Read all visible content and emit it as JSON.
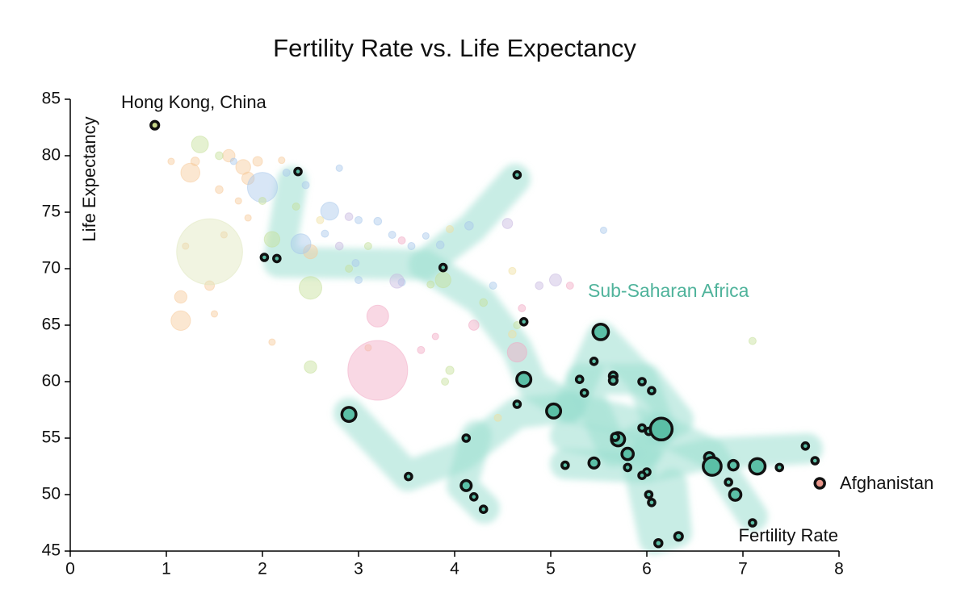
{
  "chart_data": {
    "type": "scatter",
    "title": "Fertility Rate vs. Life Expectancy",
    "x_label": "Fertility Rate",
    "y_label": "Life Expectancy",
    "xlim": [
      0,
      8
    ],
    "ylim": [
      45,
      85
    ],
    "xticks": [
      0,
      1,
      2,
      3,
      4,
      5,
      6,
      7,
      8
    ],
    "yticks": [
      45,
      50,
      55,
      60,
      65,
      70,
      75,
      80,
      85
    ],
    "series": [
      {
        "name": "Sub-Saharan Africa",
        "color": "#5bbfa6",
        "outline": true,
        "x": [
          2.37,
          2.02,
          2.15,
          3.88,
          4.65,
          4.72,
          5.52,
          5.45,
          5.3,
          4.72,
          5.35,
          5.65,
          5.65,
          5.95,
          6.05,
          4.65,
          5.03,
          2.9,
          5.95,
          6.02,
          6.15,
          4.12,
          5.7,
          5.67,
          5.8,
          5.15,
          5.45,
          5.8,
          6.0,
          5.95,
          6.65,
          6.68,
          6.9,
          7.15,
          7.38,
          7.65,
          7.75,
          6.85,
          6.92,
          6.02,
          6.05,
          3.52,
          4.12,
          4.2,
          4.3,
          7.1,
          6.12,
          6.33
        ],
        "values": [
          78.6,
          71.0,
          70.9,
          70.1,
          78.3,
          65.3,
          64.4,
          61.8,
          60.2,
          60.2,
          59.0,
          60.5,
          60.1,
          60.0,
          59.2,
          58.0,
          57.4,
          57.1,
          55.9,
          55.6,
          55.8,
          55.0,
          54.9,
          55.1,
          53.6,
          52.6,
          52.8,
          52.4,
          52.0,
          51.7,
          53.3,
          52.5,
          52.6,
          52.5,
          52.4,
          54.3,
          53.0,
          51.1,
          50.0,
          50.0,
          49.3,
          51.6,
          50.8,
          49.8,
          48.7,
          47.5,
          45.7,
          46.3
        ],
        "sizes": [
          1,
          1,
          1,
          1,
          1,
          1,
          40,
          1,
          1,
          30,
          1,
          3,
          3,
          1,
          1,
          1,
          30,
          30,
          1,
          1,
          100,
          1,
          25,
          2,
          15,
          1,
          10,
          1,
          1,
          1,
          8,
          60,
          8,
          40,
          1,
          1,
          1,
          1,
          15,
          1,
          1,
          1,
          10,
          1,
          1,
          1,
          2,
          3
        ]
      },
      {
        "name": "Hong Kong, China",
        "color": "#c8d88a",
        "outline": true,
        "x": [
          0.88
        ],
        "values": [
          82.7
        ],
        "sizes": [
          3
        ]
      },
      {
        "name": "Afghanistan",
        "color": "#e8958a",
        "outline": true,
        "x": [
          7.8
        ],
        "values": [
          51.0
        ],
        "sizes": [
          8
        ]
      },
      {
        "color": "#f7c99a",
        "outline": false,
        "x": [
          1.3,
          1.25,
          1.65,
          1.8,
          1.85,
          1.95,
          1.15,
          1.45,
          1.15,
          1.75,
          1.85,
          1.2,
          1.6,
          2.5,
          2.1,
          1.5,
          3.1,
          2.2,
          1.05,
          1.55
        ],
        "values": [
          79.5,
          78.5,
          80.0,
          79.0,
          78.0,
          79.5,
          67.5,
          68.5,
          65.4,
          76.0,
          74.5,
          72.0,
          73.0,
          71.5,
          63.5,
          66.0,
          63.0,
          79.6,
          79.5,
          77.0
        ],
        "sizes": [
          5,
          70,
          20,
          35,
          20,
          8,
          20,
          8,
          75,
          1,
          1,
          1,
          1,
          30,
          1,
          1,
          1,
          1,
          1,
          3
        ]
      },
      {
        "color": "#a8c8ec",
        "outline": false,
        "x": [
          1.7,
          2.0,
          2.7,
          2.4,
          2.65,
          3.0,
          3.2,
          3.35,
          3.55,
          3.45,
          2.97,
          3.0,
          3.85,
          4.15,
          4.4,
          5.55,
          2.25,
          2.45,
          2.8,
          3.7
        ],
        "values": [
          79.5,
          77.2,
          75.1,
          72.2,
          73.1,
          74.3,
          74.2,
          73.0,
          72.0,
          68.8,
          70.5,
          69.0,
          72.1,
          73.8,
          68.5,
          73.4,
          78.5,
          77.4,
          78.9,
          72.9
        ],
        "sizes": [
          1,
          220,
          60,
          80,
          2,
          2,
          3,
          2,
          2,
          2,
          2,
          2,
          3,
          5,
          2,
          1,
          2,
          2,
          1,
          1
        ]
      },
      {
        "color": "#c6df9a",
        "outline": false,
        "x": [
          1.35,
          1.55,
          2.1,
          2.5,
          3.88,
          2.5,
          3.95,
          2.35,
          3.1,
          4.3,
          3.75,
          4.65,
          7.1,
          3.9,
          2.0,
          2.9
        ],
        "values": [
          81.0,
          80.0,
          72.6,
          68.3,
          69.0,
          61.3,
          61.0,
          75.5,
          72.0,
          67.0,
          68.6,
          65.0,
          63.6,
          60.0,
          76.0,
          70.0
        ],
        "sizes": [
          50,
          3,
          40,
          110,
          40,
          20,
          4,
          2,
          2,
          3,
          2,
          2,
          2,
          2,
          2,
          2
        ]
      },
      {
        "color": "#dfe7bd",
        "outline": false,
        "x": [
          1.45
        ],
        "values": [
          71.5
        ],
        "sizes": [
          1300
        ]
      },
      {
        "color": "#f2a8c4",
        "outline": false,
        "x": [
          3.2,
          3.2,
          4.65,
          4.2,
          3.45,
          4.7,
          3.65,
          5.2,
          3.8
        ],
        "values": [
          61.0,
          65.8,
          62.6,
          65.0,
          72.5,
          66.5,
          62.8,
          68.5,
          64.0
        ],
        "sizes": [
          1050,
          100,
          75,
          10,
          2,
          2,
          2,
          2,
          1
        ]
      },
      {
        "color": "#c7b8e0",
        "outline": false,
        "x": [
          3.4,
          5.05,
          4.88,
          2.9,
          4.55,
          2.8
        ],
        "values": [
          68.9,
          69.0,
          68.5,
          74.6,
          74.0,
          72.0
        ],
        "sizes": [
          30,
          18,
          3,
          3,
          10,
          3
        ]
      },
      {
        "color": "#f0e0a0",
        "outline": false,
        "x": [
          4.45,
          4.6,
          2.6,
          4.6,
          3.95
        ],
        "values": [
          56.8,
          64.2,
          74.3,
          69.8,
          73.5
        ],
        "sizes": [
          2,
          3,
          2,
          2,
          2
        ]
      }
    ]
  }
}
